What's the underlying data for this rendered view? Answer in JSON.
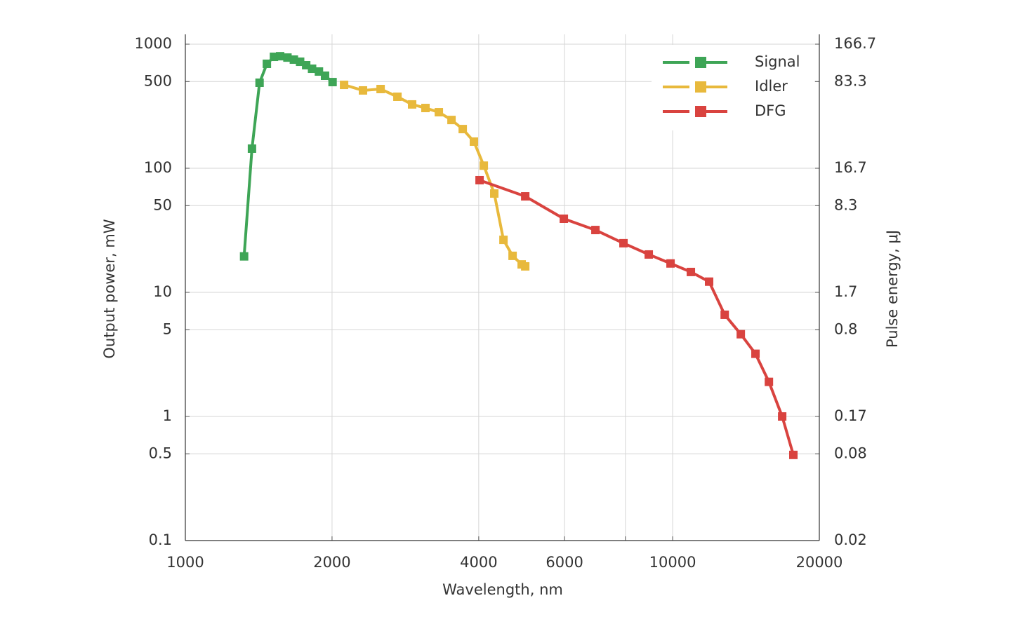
{
  "chart_data": {
    "type": "line",
    "x_label": "Wavelength, nm",
    "y_label": "Output power, mW",
    "y2_label": "Pulse energy, μJ",
    "xlog": true,
    "ylog": true,
    "y2log": true,
    "grid": true,
    "legend": "top-right",
    "xlim": [
      1000,
      20000
    ],
    "xticks": [
      1000,
      2000,
      4000,
      6000,
      {
        "value": 8000,
        "label": null
      },
      10000,
      20000
    ],
    "ylim": [
      0.1,
      1200
    ],
    "yticks": [
      0.1,
      0.5,
      1,
      5,
      10,
      50,
      100,
      500,
      1000
    ],
    "y2lim": [
      0.016667,
      200
    ],
    "y2ticks": [
      {
        "value": 0.016667,
        "label": "0.02"
      },
      {
        "value": 0.083333,
        "label": "0.08"
      },
      {
        "value": 0.16667,
        "label": "0.17"
      },
      {
        "value": 0.83333,
        "label": "0.8"
      },
      {
        "value": 1.6667,
        "label": "1.7"
      },
      {
        "value": 8.3333,
        "label": "8.3"
      },
      {
        "value": 16.667,
        "label": "16.7"
      },
      {
        "value": 83.333,
        "label": "83.3"
      },
      {
        "value": 166.67,
        "label": "166.7"
      }
    ],
    "series": [
      {
        "name": "Signal",
        "color": "#3ea556",
        "x": [
          1320,
          1370,
          1420,
          1470,
          1520,
          1565,
          1620,
          1670,
          1720,
          1770,
          1820,
          1880,
          1935,
          2005
        ],
        "values": [
          19.5,
          144,
          489,
          695,
          791,
          800,
          780,
          751,
          722,
          677,
          634,
          602,
          557,
          495
        ]
      },
      {
        "name": "Idler",
        "color": "#e8b93c",
        "x": [
          2117,
          2315,
          2516,
          2724,
          2920,
          3110,
          3313,
          3517,
          3709,
          3910,
          4097,
          4305,
          4496,
          4694,
          4900,
          4983
        ],
        "values": [
          470,
          424,
          435,
          377,
          327,
          306,
          283,
          245,
          207,
          164,
          105,
          62.6,
          26.5,
          19.7,
          16.8,
          16.2
        ]
      },
      {
        "name": "DFG",
        "color": "#d9433f",
        "x": [
          4016,
          4983,
          5980,
          6943,
          7927,
          8933,
          9901,
          10900,
          11880,
          12790,
          13800,
          14790,
          15760,
          16780,
          17690
        ],
        "values": [
          80.2,
          59.4,
          39.2,
          31.8,
          24.9,
          20.2,
          17.1,
          14.6,
          12.2,
          6.6,
          4.6,
          3.2,
          1.9,
          1,
          0.49
        ]
      }
    ]
  }
}
